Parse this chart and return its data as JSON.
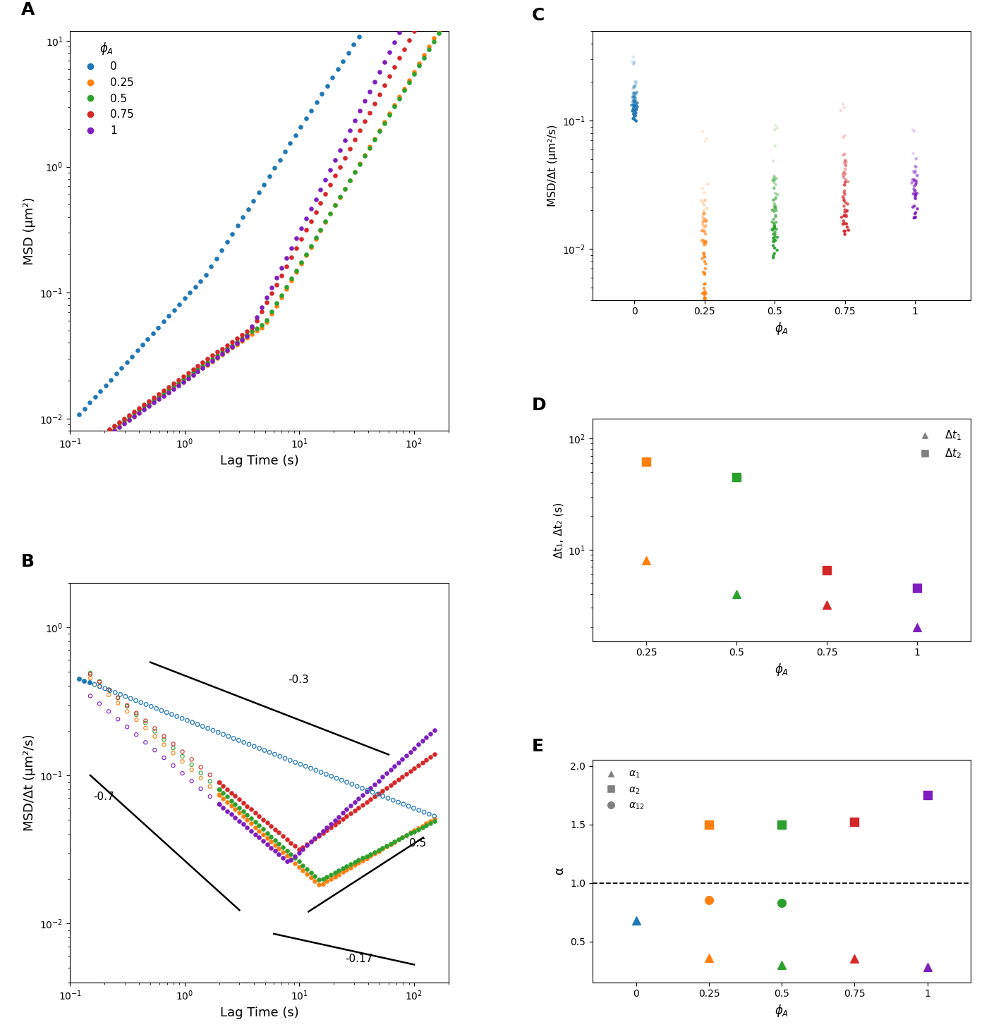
{
  "colors": {
    "blue": "#1f77b4",
    "orange": "#ff7f0e",
    "green": "#2ca02c",
    "red": "#d62728",
    "purple": "#7f1dbf"
  },
  "panel_A": {
    "xlabel": "Lag Time (s)",
    "ylabel": "MSD (μm²)",
    "xlim": [
      0.1,
      200
    ],
    "ylim": [
      0.008,
      12
    ]
  },
  "panel_B": {
    "xlabel": "Lag Time (s)",
    "ylabel": "MSD/Δt (μm²/s)",
    "xlim": [
      0.1,
      200
    ],
    "ylim": [
      0.004,
      2
    ]
  },
  "panel_C": {
    "ylabel": "MSD/Δt (μm²/s)",
    "ylim": [
      0.004,
      0.5
    ]
  },
  "panel_D": {
    "ylabel": "Δt₁, Δt₂ (s)",
    "ylim": [
      1.5,
      150
    ],
    "dt1_values": [
      8.0,
      4.0,
      3.2,
      2.0
    ],
    "dt2_values": [
      62.0,
      45.0,
      6.5,
      4.5
    ],
    "phi_D": [
      0.25,
      0.5,
      0.75,
      1.0
    ]
  },
  "panel_E": {
    "ylabel": "α",
    "ylim": [
      0.15,
      2.05
    ],
    "alpha1_phi": [
      0,
      0.25,
      0.5,
      0.75,
      1.0
    ],
    "alpha1_values": [
      0.68,
      0.36,
      0.3,
      0.35,
      0.28
    ],
    "alpha2_phi": [
      0.25,
      0.5,
      0.75,
      1.0
    ],
    "alpha2_values": [
      1.5,
      1.5,
      1.52,
      1.75
    ],
    "alpha12_phi": [
      0.25,
      0.5
    ],
    "alpha12_values": [
      0.85,
      0.83
    ]
  }
}
